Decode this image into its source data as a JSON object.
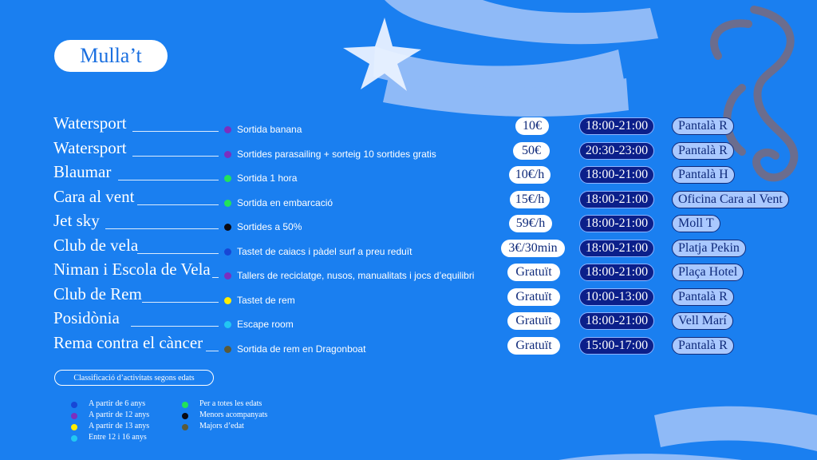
{
  "title": "Mulla’t",
  "colors": {
    "background": "#1a7ff0",
    "time_pill": "#0b1f8a",
    "place_pill": "#a9c8ff",
    "age_6": "#1747d6",
    "age_12": "#7b2fbf",
    "age_13": "#ffee00",
    "age_12_16": "#22c7f2",
    "all_ages": "#22e35a",
    "accompanied": "#0a0a14",
    "adults": "#5a5a3a"
  },
  "rows": [
    {
      "org": "Watersport",
      "activity": "Sortida banana",
      "dot": "#7b2fbf",
      "price": "10€",
      "time": "18:00-21:00",
      "place": "Pantalà R"
    },
    {
      "org": "Watersport",
      "activity": "Sortides parasailing + sorteig 10 sortides gratis",
      "dot": "#7b2fbf",
      "price": "50€",
      "time": "20:30-23:00",
      "place": "Pantalà R"
    },
    {
      "org": "Blaumar",
      "activity": "Sortida 1 hora",
      "dot": "#22e35a",
      "price": "10€/h",
      "time": "18:00-21:00",
      "place": "Pantalà H"
    },
    {
      "org": "Cara al vent",
      "activity": "Sortida en embarcació",
      "dot": "#22e35a",
      "price": "15€/h",
      "time": "18:00-21:00",
      "place": "Oficina Cara al Vent"
    },
    {
      "org": "Jet sky",
      "activity": "Sortides a 50%",
      "dot": "#0a0a14",
      "price": "59€/h",
      "time": "18:00-21:00",
      "place": "Moll T"
    },
    {
      "org": "Club de vela",
      "activity": "Tastet de caiacs i pàdel surf a preu reduït",
      "dot": "#1747d6",
      "price": "3€/30min",
      "time": "18:00-21:00",
      "place": "Platja Pekin"
    },
    {
      "org": "Niman i Escola de Vela",
      "activity": "Tallers de reciclatge, nusos, manualitats i jocs d’equilibri",
      "dot": "#7b2fbf",
      "price": "Gratuït",
      "time": "18:00-21:00",
      "place": "Plaça Hotel"
    },
    {
      "org": "Club de Rem",
      "activity": "Tastet de rem",
      "dot": "#ffee00",
      "price": "Gratuït",
      "time": "10:00-13:00",
      "place": "Pantalà R"
    },
    {
      "org": "Posidònia",
      "activity": "Escape room",
      "dot": "#22c7f2",
      "price": "Gratuït",
      "time": "18:00-21:00",
      "place": "Vell Marí"
    },
    {
      "org": "Rema contra el càncer",
      "activity": "Sortida de rem en Dragonboat",
      "dot": "#5a5a3a",
      "price": "Gratuït",
      "time": "15:00-17:00",
      "place": "Pantalà R"
    }
  ],
  "legend": {
    "title": "Classificació d’activitats segons edats",
    "items": [
      {
        "label": "A partir de 6 anys",
        "color": "#1747d6"
      },
      {
        "label": "A partir de 12 anys",
        "color": "#7b2fbf"
      },
      {
        "label": "A partir de 13 anys",
        "color": "#ffee00"
      },
      {
        "label": "Entre 12 i 16 anys",
        "color": "#22c7f2"
      },
      {
        "label": "Per a totes les edats",
        "color": "#22e35a"
      },
      {
        "label": "Menors acompanyats",
        "color": "#0a0a14"
      },
      {
        "label": "Majors d’edat",
        "color": "#5a5a3a"
      }
    ]
  },
  "icons": [
    "starfish-icon",
    "seahorse-icon",
    "wave-decoration"
  ]
}
